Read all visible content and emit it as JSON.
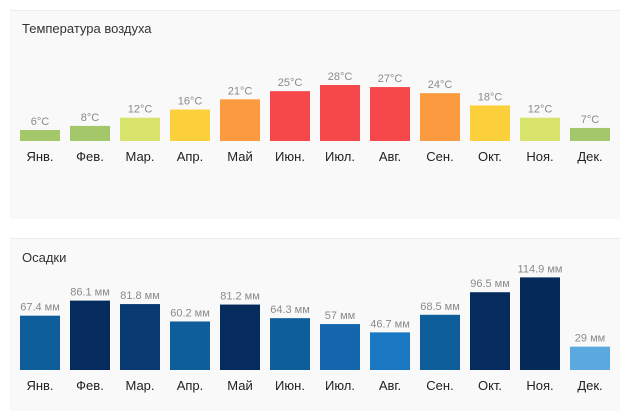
{
  "temperature": {
    "title": "Температура воздуха",
    "chart_data": {
      "type": "bar",
      "title": "Температура воздуха",
      "categories": [
        "Янв.",
        "Фев.",
        "Мар.",
        "Апр.",
        "Май",
        "Июн.",
        "Июл.",
        "Авг.",
        "Сен.",
        "Окт.",
        "Ноя.",
        "Дек."
      ],
      "values": [
        6,
        8,
        12,
        16,
        21,
        25,
        28,
        27,
        24,
        18,
        12,
        7
      ],
      "value_labels": [
        "6°C",
        "8°C",
        "12°C",
        "16°C",
        "21°C",
        "25°C",
        "28°C",
        "27°C",
        "24°C",
        "18°C",
        "12°C",
        "7°C"
      ],
      "colors": [
        "#a4c76a",
        "#a4c76a",
        "#d8e36b",
        "#fcd03a",
        "#fb9a3e",
        "#f6484b",
        "#f6484b",
        "#f6484b",
        "#fb9a3e",
        "#fcd03a",
        "#d8e36b",
        "#a4c76a"
      ],
      "unit": "°C",
      "grid": false,
      "legend": "none"
    }
  },
  "precipitation": {
    "title": "Осадки",
    "chart_data": {
      "type": "bar",
      "title": "Осадки",
      "categories": [
        "Янв.",
        "Фев.",
        "Мар.",
        "Апр.",
        "Май",
        "Июн.",
        "Июл.",
        "Авг.",
        "Сен.",
        "Окт.",
        "Ноя.",
        "Дек."
      ],
      "values": [
        67.4,
        86.1,
        81.8,
        60.2,
        81.2,
        64.3,
        57,
        46.7,
        68.5,
        96.5,
        114.9,
        29
      ],
      "value_labels": [
        "67.4 мм",
        "86.1 мм",
        "81.8 мм",
        "60.2 мм",
        "81.2 мм",
        "64.3 мм",
        "57 мм",
        "46.7 мм",
        "68.5 мм",
        "96.5 мм",
        "114.9 мм",
        "29 мм"
      ],
      "colors": [
        "#0f5e9c",
        "#062c5e",
        "#093a72",
        "#0f5e9c",
        "#062c5e",
        "#0f5e9c",
        "#1467ad",
        "#1a78c2",
        "#0f5e9c",
        "#062c5e",
        "#052a5a",
        "#5aa9e0"
      ],
      "unit": "мм",
      "grid": false,
      "legend": "none"
    }
  }
}
